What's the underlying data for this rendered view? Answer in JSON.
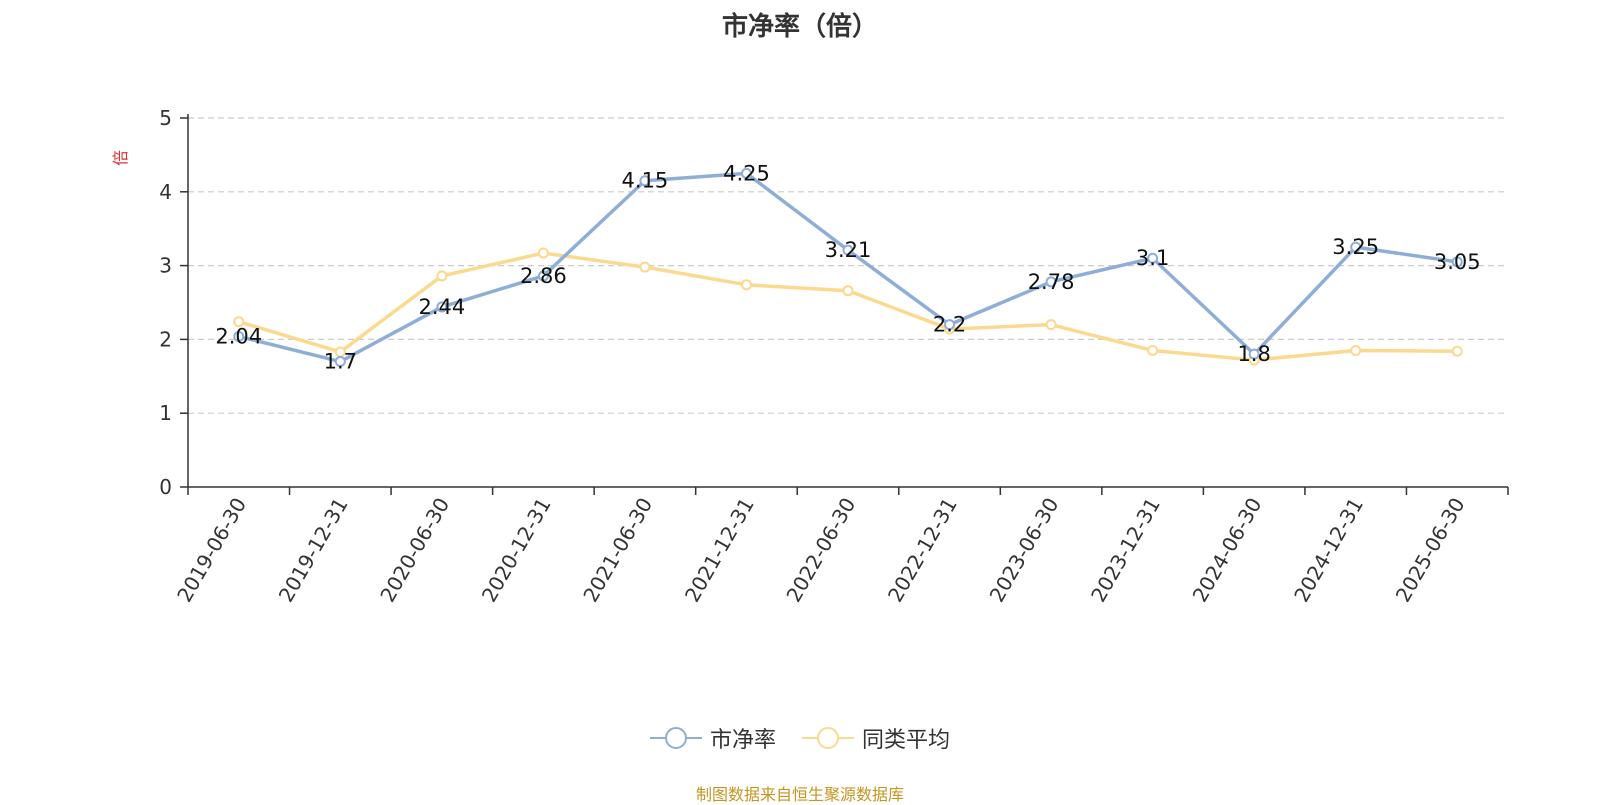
{
  "colors": {
    "series_1": "#8eaed8",
    "series_2": "#fbd98f",
    "source_text": "#c5961f",
    "axis_unit": "#e03030"
  },
  "chart_data": {
    "type": "line",
    "title": "市净率（倍）",
    "ylabel": "倍",
    "xlabel": "",
    "ylim": [
      0,
      5
    ],
    "yticks": [
      0,
      1,
      2,
      3,
      4,
      5
    ],
    "grid": true,
    "legend_position": "bottom",
    "categories": [
      "2019-06-30",
      "2019-12-31",
      "2020-06-30",
      "2020-12-31",
      "2021-06-30",
      "2021-12-31",
      "2022-06-30",
      "2022-12-31",
      "2023-06-30",
      "2023-12-31",
      "2024-06-30",
      "2024-12-31",
      "2025-06-30"
    ],
    "series": [
      {
        "name": "市净率",
        "values": [
          2.04,
          1.7,
          2.44,
          2.86,
          4.15,
          4.25,
          3.21,
          2.2,
          2.78,
          3.1,
          1.8,
          3.25,
          3.05
        ],
        "labels": [
          "2.04",
          "1.7",
          "2.44",
          "2.86",
          "4.15",
          "4.25",
          "3.21",
          "2.2",
          "2.78",
          "3.1",
          "1.8",
          "3.25",
          "3.05"
        ]
      },
      {
        "name": "同类平均",
        "values": [
          2.24,
          1.83,
          2.86,
          3.17,
          2.98,
          2.74,
          2.66,
          2.14,
          2.2,
          1.85,
          1.72,
          1.85,
          1.84
        ]
      }
    ]
  },
  "legend": {
    "items": [
      "市净率",
      "同类平均"
    ]
  },
  "source": "制图数据来自恒生聚源数据库"
}
